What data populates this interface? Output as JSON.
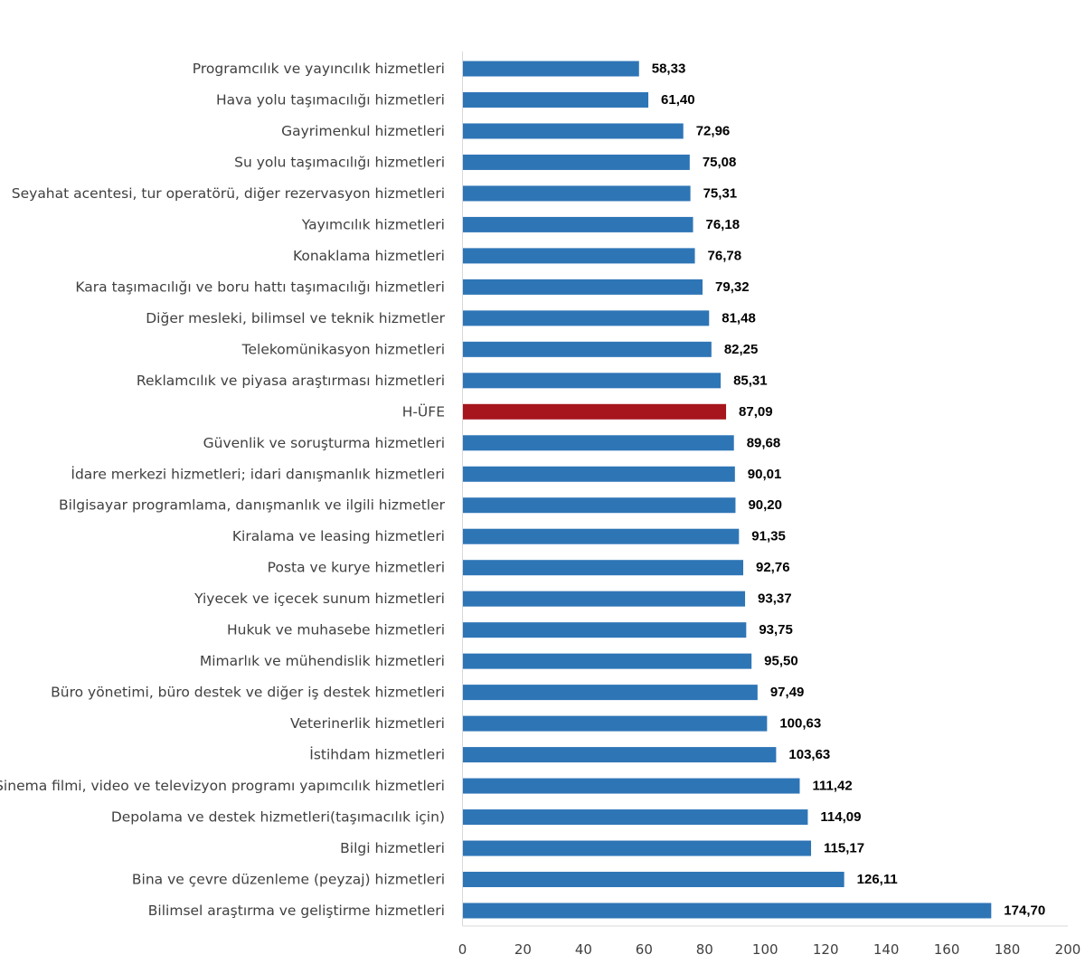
{
  "chart_data": {
    "type": "bar",
    "orientation": "horizontal",
    "title": "",
    "xlabel": "",
    "ylabel": "",
    "xlim": [
      0,
      200
    ],
    "ticks": [
      "0",
      "20",
      "40",
      "60",
      "80",
      "100",
      "120",
      "140",
      "160",
      "180",
      "200"
    ],
    "grid": false,
    "legend": "none",
    "colors": {
      "default": "#2e75b6",
      "highlight": "#a6161c",
      "axis": "#d9d9d9"
    },
    "highlight_category": "H-ÜFE",
    "categories": [
      "Programcılık ve yayıncılık hizmetleri",
      "Hava yolu taşımacılığı hizmetleri",
      "Gayrimenkul hizmetleri",
      "Su yolu taşımacılığı hizmetleri",
      "Seyahat acentesi, tur operatörü, diğer rezervasyon hizmetleri",
      "Yayımcılık hizmetleri",
      "Konaklama hizmetleri",
      "Kara taşımacılığı ve boru hattı taşımacılığı hizmetleri",
      "Diğer mesleki, bilimsel ve teknik hizmetler",
      "Telekomünikasyon hizmetleri",
      "Reklamcılık ve piyasa araştırması hizmetleri",
      "H-ÜFE",
      "Güvenlik ve soruşturma hizmetleri",
      "İdare merkezi hizmetleri; idari danışmanlık hizmetleri",
      "Bilgisayar programlama, danışmanlık ve ilgili hizmetler",
      "Kiralama ve leasing hizmetleri",
      "Posta ve kurye hizmetleri",
      "Yiyecek ve içecek sunum hizmetleri",
      "Hukuk ve muhasebe hizmetleri",
      "Mimarlık ve mühendislik hizmetleri",
      "Büro yönetimi, büro destek ve diğer iş destek hizmetleri",
      "Veterinerlik hizmetleri",
      "İstihdam hizmetleri",
      "Sinema filmi, video ve televizyon programı yapımcılık hizmetleri",
      "Depolama ve destek hizmetleri(taşımacılık için)",
      "Bilgi hizmetleri",
      "Bina ve çevre düzenleme (peyzaj) hizmetleri",
      "Bilimsel araştırma ve geliştirme hizmetleri"
    ],
    "values": [
      58.33,
      61.4,
      72.96,
      75.08,
      75.31,
      76.18,
      76.78,
      79.32,
      81.48,
      82.25,
      85.31,
      87.09,
      89.68,
      90.01,
      90.2,
      91.35,
      92.76,
      93.37,
      93.75,
      95.5,
      97.49,
      100.63,
      103.63,
      111.42,
      114.09,
      115.17,
      126.11,
      174.7
    ],
    "value_labels": [
      "58,33",
      "61,40",
      "72,96",
      "75,08",
      "75,31",
      "76,18",
      "76,78",
      "79,32",
      "81,48",
      "82,25",
      "85,31",
      "87,09",
      "89,68",
      "90,01",
      "90,20",
      "91,35",
      "92,76",
      "93,37",
      "93,75",
      "95,50",
      "97,49",
      "100,63",
      "103,63",
      "111,42",
      "114,09",
      "115,17",
      "126,11",
      "174,70"
    ]
  }
}
